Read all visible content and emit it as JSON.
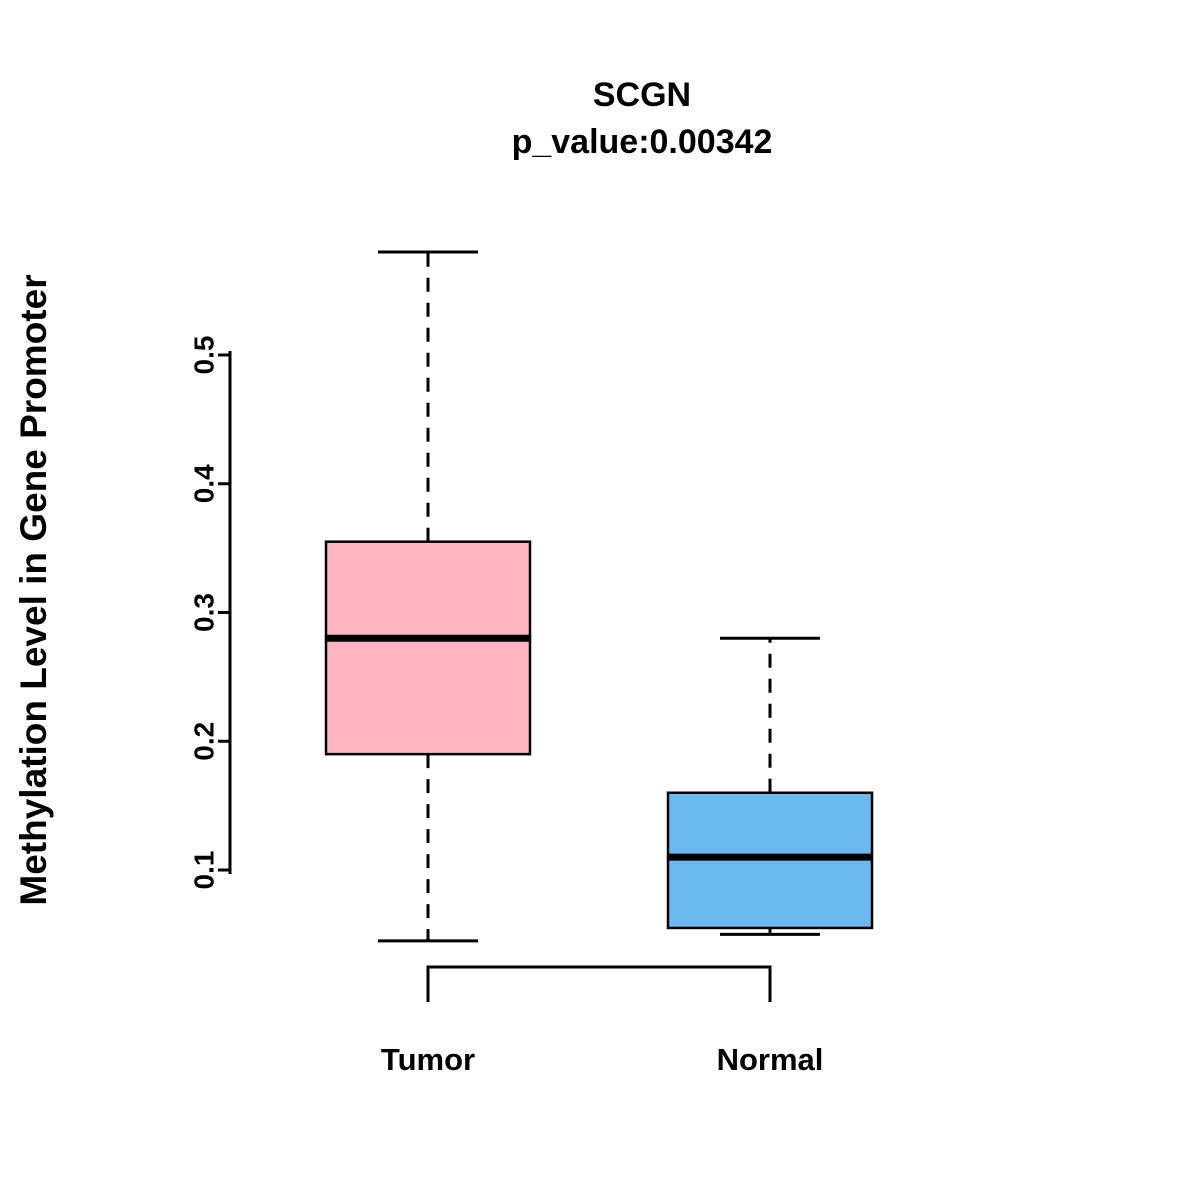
{
  "chart_data": {
    "type": "box",
    "title": "SCGN",
    "subtitle": "p_value:0.00342",
    "ylabel": "Methylation Level in Gene Promoter",
    "yticks": [
      "0.1",
      "0.2",
      "0.3",
      "0.4",
      "0.5"
    ],
    "ylim": [
      0.04,
      0.6
    ],
    "grid": false,
    "whisker_style": "dashed",
    "groups": [
      {
        "label": "Tumor",
        "color": "#FFB6C1",
        "min": 0.045,
        "q1": 0.19,
        "median": 0.28,
        "q3": 0.355,
        "max": 0.58
      },
      {
        "label": "Normal",
        "color": "#6CB9EF",
        "min": 0.05,
        "q1": 0.055,
        "median": 0.11,
        "q3": 0.16,
        "max": 0.28
      }
    ],
    "comparison_bracket": {
      "between": [
        "Tumor",
        "Normal"
      ]
    }
  }
}
